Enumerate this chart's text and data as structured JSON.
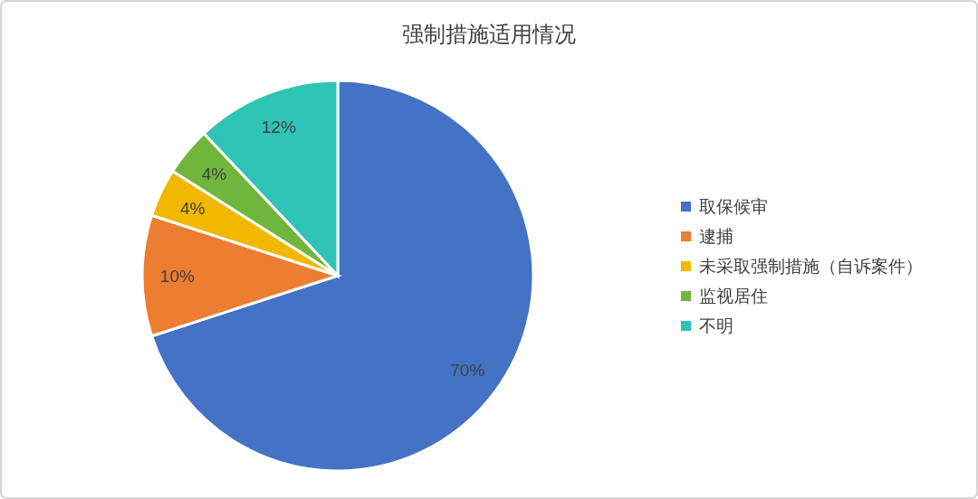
{
  "chart_data": {
    "type": "pie",
    "title": "强制措施适用情况",
    "categories": [
      "取保候审",
      "逮捕",
      "未采取强制措施（自诉案件）",
      "监视居住",
      "不明"
    ],
    "values": [
      70,
      10,
      4,
      4,
      12
    ],
    "colors": [
      "#4472c4",
      "#ed7d31",
      "#f2b800",
      "#70b63c",
      "#2ec4b6"
    ],
    "value_labels": [
      "70%",
      "10%",
      "4%",
      "4%",
      "12%"
    ],
    "legend": "right"
  }
}
